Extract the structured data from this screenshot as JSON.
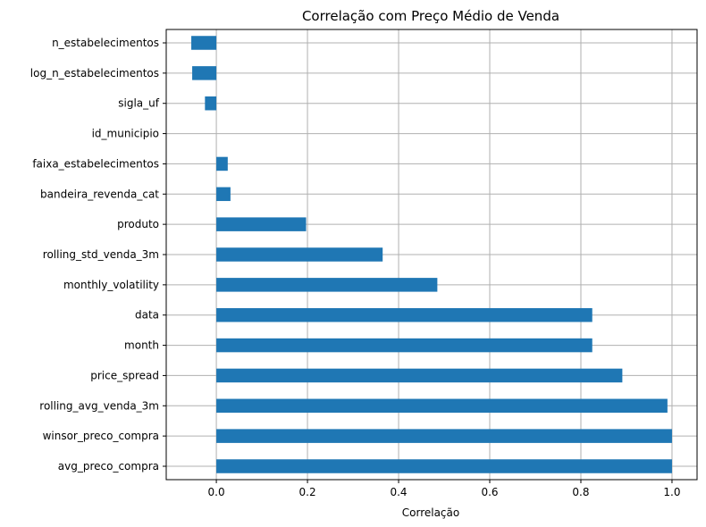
{
  "chart_data": {
    "type": "bar",
    "orientation": "horizontal",
    "title": "Correlação com Preço Médio de Venda",
    "xlabel": "Correlação",
    "ylabel": "",
    "xlim": [
      -0.11,
      1.055
    ],
    "xticks": [
      0.0,
      0.2,
      0.4,
      0.6,
      0.8,
      1.0
    ],
    "xtick_labels": [
      "0.0",
      "0.2",
      "0.4",
      "0.6",
      "0.8",
      "1.0"
    ],
    "grid": true,
    "bar_color": "#1f77b4",
    "categories": [
      "n_estabelecimentos",
      "log_n_estabelecimentos",
      "sigla_uf",
      "id_municipio",
      "faixa_estabelecimentos",
      "bandeira_revenda_cat",
      "produto",
      "rolling_std_venda_3m",
      "monthly_volatility",
      "data",
      "month",
      "price_spread",
      "rolling_avg_venda_3m",
      "winsor_preco_compra",
      "avg_preco_compra"
    ],
    "values": [
      -0.055,
      -0.053,
      -0.025,
      0.0,
      0.025,
      0.031,
      0.197,
      0.365,
      0.485,
      0.825,
      0.825,
      0.891,
      0.99,
      1.0,
      1.0
    ]
  }
}
